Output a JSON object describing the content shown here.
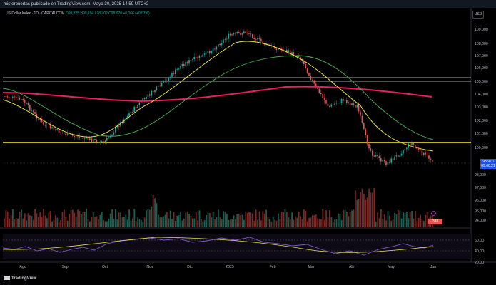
{
  "caption": "misterpuertas publicado en TradingView.com, Mayo 30, 2025 14:59 UTC+2",
  "symbol": {
    "title": "US Dollar Index · 1D · CAPITALCOM",
    "ohlc": "O99,825 H99,194 L98,702 C98,970 +0,066 (+0,07%)"
  },
  "currency_button": "USD",
  "price_axis": [
    "109,000",
    "108,000",
    "107,000",
    "106,000",
    "105,000",
    "104,000",
    "103,000",
    "102,000",
    "101,000",
    "100,000",
    "98,000",
    "97,000",
    "96,000",
    "95,000",
    "94,000"
  ],
  "last_price": {
    "value": "98,970",
    "countdown": "09:00:21"
  },
  "volume_badge": "333",
  "rsi_axis": [
    "60,00",
    "40,00",
    "20,00"
  ],
  "time_axis": [
    "Ago",
    "Sep",
    "Oct",
    "Nov",
    "Dic",
    "2025",
    "Feb",
    "Mar",
    "Abr",
    "May",
    "Jun"
  ],
  "colors": {
    "up": "#26a69a",
    "down": "#ef5350",
    "ma_fast": "#e9e24c",
    "ma_mid": "#4caf50",
    "ma_slow": "#e91e63",
    "level": "#ffeb3b",
    "rsi": "#7e57c2"
  },
  "logo": "TradingView"
}
